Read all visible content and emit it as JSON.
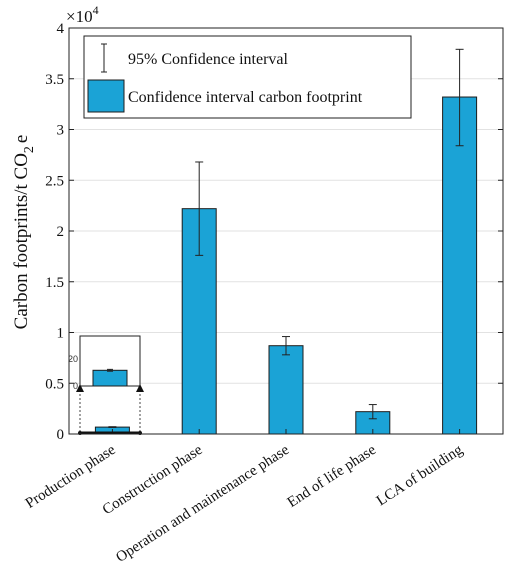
{
  "chart_data": {
    "type": "bar",
    "categories": [
      "Production phase",
      "Construction phase",
      "Operation and maintenance phase",
      "End of life phase",
      "LCA of building"
    ],
    "values": [
      680,
      22200,
      8700,
      2200,
      33200
    ],
    "error_low": [
      640,
      17600,
      7800,
      1500,
      28400
    ],
    "error_high": [
      720,
      26800,
      9600,
      2900,
      37900
    ],
    "ylabel_main": "Carbon footprints/t CO",
    "ylabel_sub": "2",
    "ylabel_tail": "e",
    "multiplier_base": "×10",
    "multiplier_exp": "4",
    "ylim": [
      0,
      40000
    ],
    "yticks": [
      0,
      5000,
      10000,
      15000,
      20000,
      25000,
      30000,
      35000,
      40000
    ],
    "ytick_labels": [
      "0",
      "0.5",
      "1",
      "1.5",
      "2",
      "2.5",
      "3",
      "3.5",
      "4"
    ],
    "grid": "horizontal",
    "legend": {
      "placement": "top-left",
      "errorbar_label": "95% Confidence interval",
      "bar_label": "Confidence interval carbon footprint"
    },
    "inset": {
      "category": "Production phase",
      "tick_labels": [
        "20",
        "0"
      ]
    },
    "colors": {
      "bar": "#1ba3d6",
      "bar_edge": "#1c1c1c",
      "grid": "#e2e2e2",
      "axis": "#222222"
    }
  }
}
